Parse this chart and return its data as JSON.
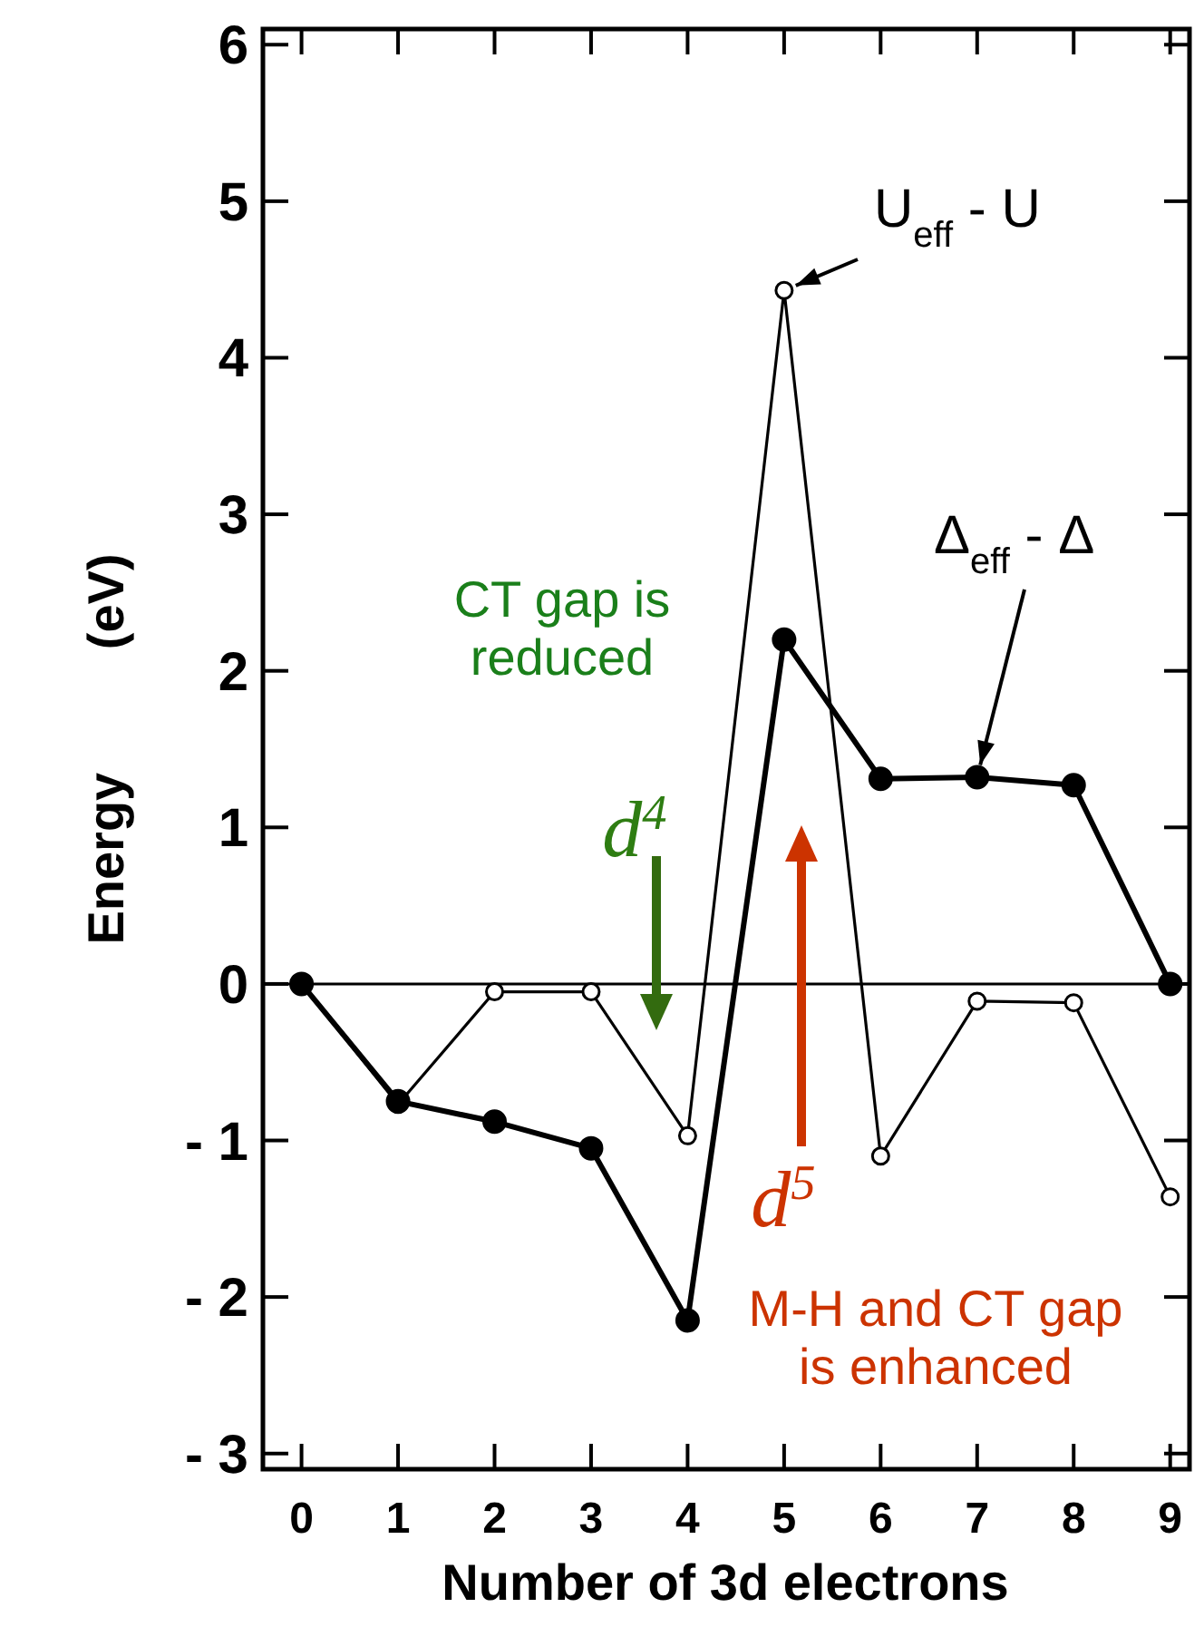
{
  "chart_data": {
    "type": "line",
    "xlabel": "Number of 3d electrons",
    "ylabel": "Energy (eV)",
    "x": [
      0,
      1,
      2,
      3,
      4,
      5,
      6,
      7,
      8,
      9
    ],
    "xlim": [
      -0.4,
      9.2
    ],
    "xticks": [
      0,
      1,
      2,
      3,
      4,
      5,
      6,
      7,
      8,
      9
    ],
    "ylim": [
      -3.1,
      6.1
    ],
    "yticks": [
      -3,
      -2,
      -1,
      0,
      1,
      2,
      3,
      4,
      5,
      6
    ],
    "series": [
      {
        "name": "U$_{eff}$ - U",
        "color": "#000000",
        "values": [
          0,
          -0.77,
          -0.05,
          -0.05,
          -0.97,
          4.43,
          -1.1,
          -0.11,
          -0.12,
          -1.36
        ]
      },
      {
        "name": "Δ$_{eff}$ - Δ",
        "color": "#000000",
        "values": [
          0,
          -0.75,
          -0.88,
          -1.05,
          -2.15,
          2.2,
          1.31,
          1.32,
          1.27,
          0
        ]
      }
    ],
    "ref_lines": [
      {
        "axis": "y",
        "value": 0,
        "color": "#000000"
      }
    ],
    "annotations": [
      "CT gap is reduced",
      "d$^{4}$",
      "d$^{5}$",
      "M-H and CT gap is enhanced"
    ],
    "marker": "circle",
    "line_style": "solid",
    "grid": false,
    "legend": "top right"
  }
}
